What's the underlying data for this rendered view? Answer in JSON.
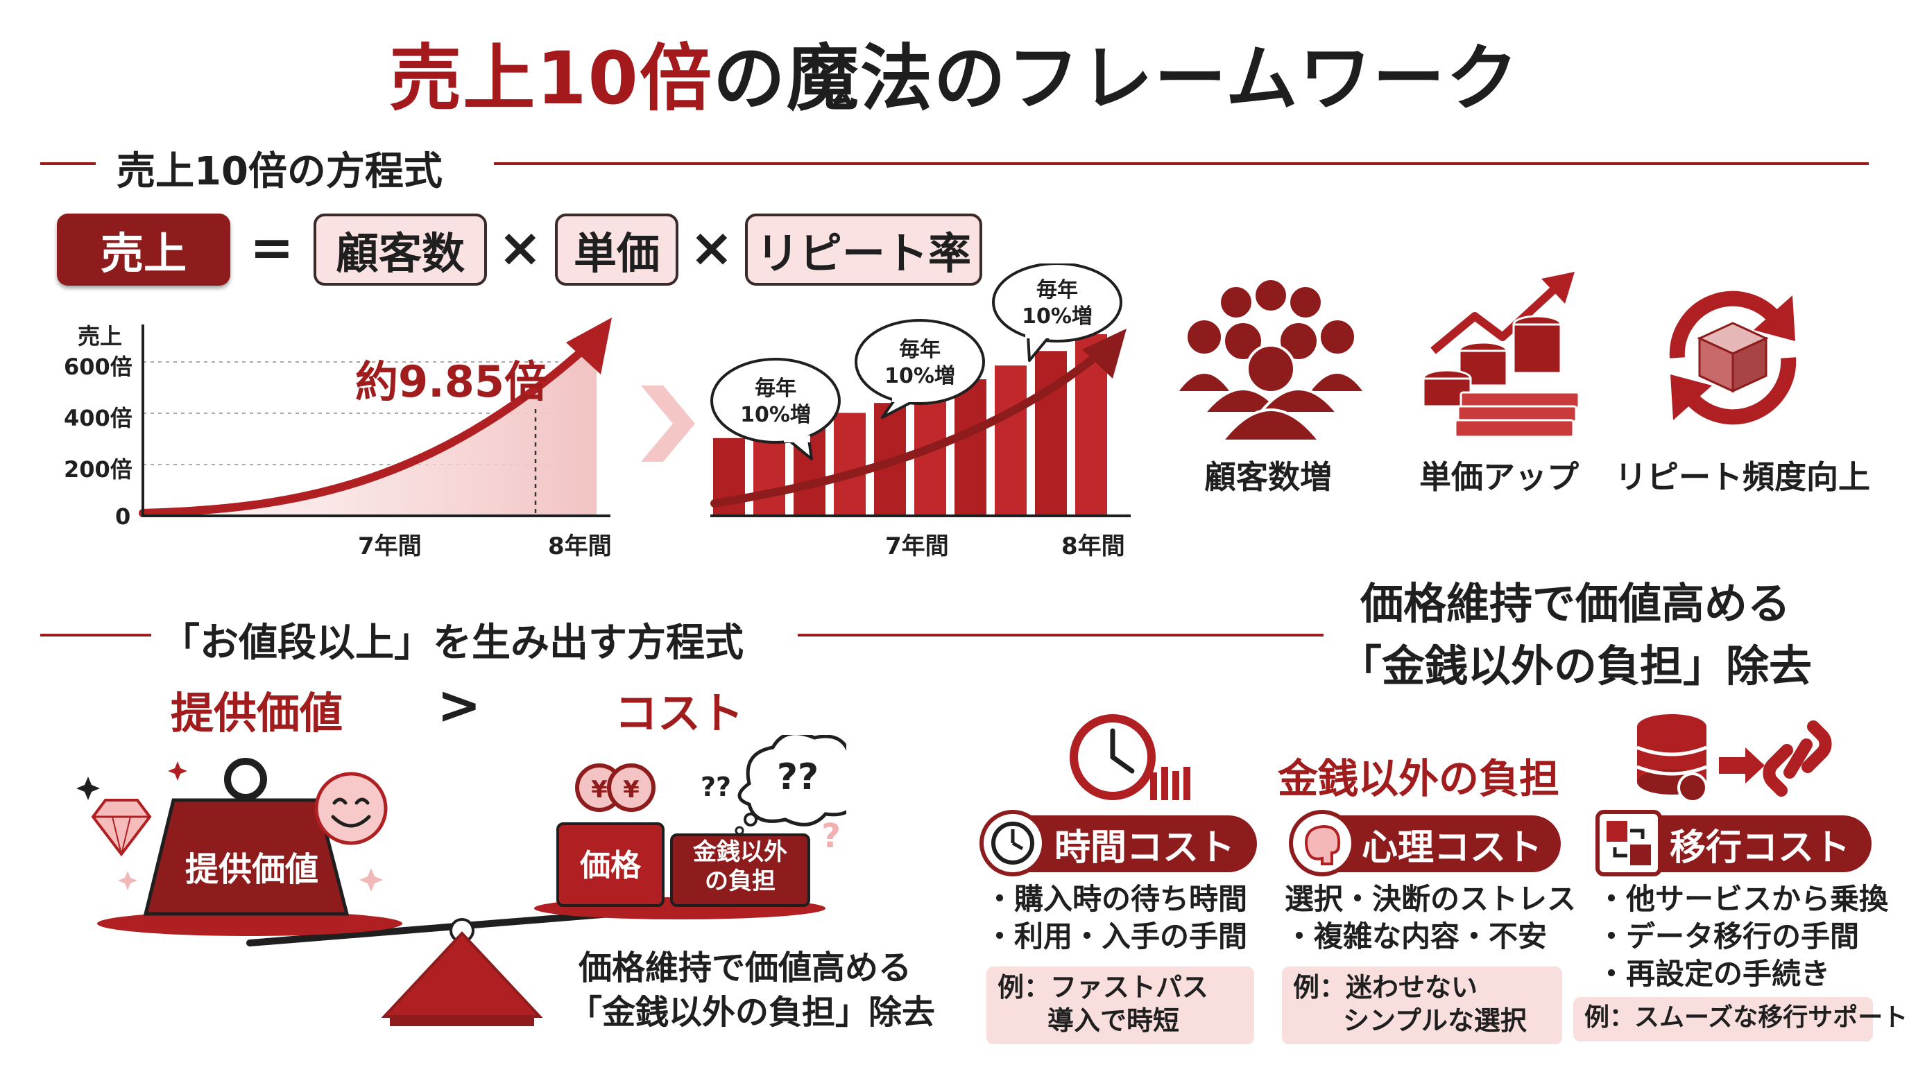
{
  "title": {
    "red": "売上10倍",
    "rest": "の魔法のフレームワーク"
  },
  "equation_section": {
    "heading": "売上10倍の方程式",
    "terms": {
      "sales": "売上",
      "eq": "=",
      "customers": "顧客数",
      "times1": "×",
      "price": "単価",
      "times2": "×",
      "repeat": "リピート率"
    }
  },
  "chart_data": [
    {
      "type": "area",
      "ylabel": "売上",
      "yticks": [
        "600倍",
        "400倍",
        "200倍",
        "0"
      ],
      "xticks": [
        "7年間",
        "8年間"
      ],
      "annotation": "約9.85倍"
    },
    {
      "type": "bar",
      "values": [
        1.0,
        1.1,
        1.21,
        1.33,
        1.46,
        1.61,
        1.77,
        1.95,
        2.14,
        2.36
      ],
      "xticks": [
        "7年間",
        "8年間"
      ],
      "bubbles": [
        {
          "line1": "毎年",
          "line2": "10%増"
        },
        {
          "line1": "毎年",
          "line2": "10%増"
        },
        {
          "line1": "毎年",
          "line2": "10%増"
        }
      ]
    }
  ],
  "levers": {
    "customers": {
      "label": "顧客数増",
      "icon": "crowd-icon"
    },
    "price": {
      "label": "単価アップ",
      "icon": "money-growth-icon"
    },
    "repeat": {
      "label": "リピート頻度向上",
      "icon": "repeat-box-icon"
    }
  },
  "value_section": {
    "heading": "「お値段以上」を生み出す方程式",
    "left_label": "提供価値",
    "gt": ">",
    "right_label": "コスト",
    "weight_label": "提供価値",
    "price_block": "価格",
    "burden_line1": "金銭以外",
    "burden_line2": "の負担",
    "question_marks": "??",
    "small_question_marks": "?",
    "caption_line1": "価格維持で価値高める",
    "caption_line2": "「金銭以外の負担」除去",
    "yen": "¥"
  },
  "burden_section": {
    "heading_line1": "価格維持で価値高める",
    "heading_line2": "「金銭以外の負担」除去",
    "center_label": "金銭以外の負担",
    "cards": [
      {
        "title": "時間コスト",
        "bullets": [
          "・購入時の待ち時間",
          "・利用・入手の手間"
        ],
        "example_line1": "例：ファストパス",
        "example_line2": "導入で時短"
      },
      {
        "title": "心理コスト",
        "bullets": [
          "選択・決断のストレス",
          "・複雑な内容・不安"
        ],
        "example_line1": "例：迷わせない",
        "example_line2": "シンプルな選択"
      },
      {
        "title": "移行コスト",
        "bullets": [
          "・他サービスから乗換",
          "・データ移行の手間",
          "・再設定の手続き"
        ],
        "example_line1": "例：スムーズな移行サポート",
        "example_line2": ""
      }
    ]
  },
  "colors": {
    "accent": "#a3191c",
    "dark_red": "#8e1c1c",
    "pink": "#fbe2e2"
  }
}
